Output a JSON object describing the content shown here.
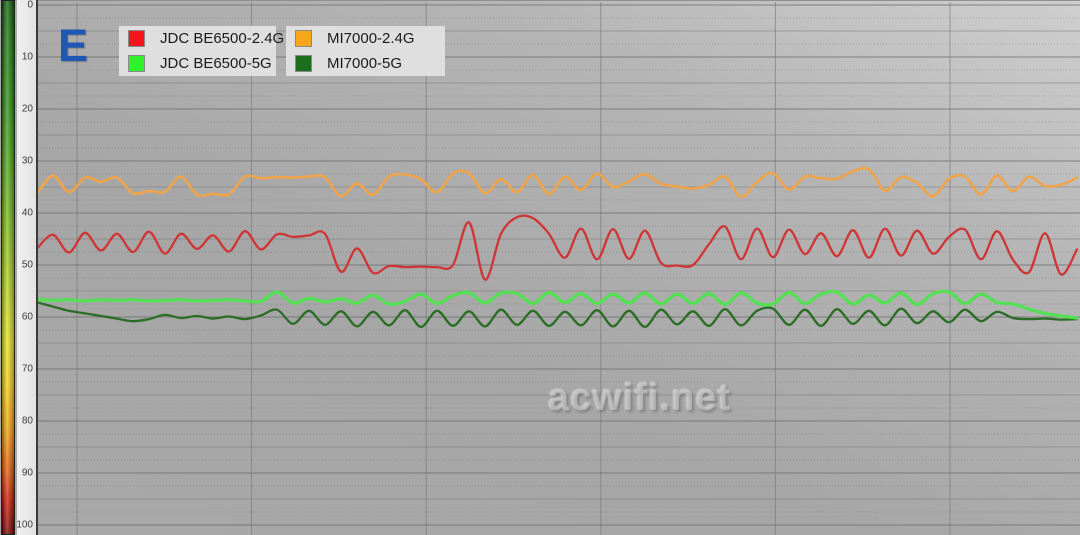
{
  "window": {
    "corner_label": "E",
    "watermark": "acwifi.net"
  },
  "legend": {
    "groups": [
      {
        "items": [
          {
            "label": "JDC BE6500-2.4G",
            "swatch_color": "#f5141e"
          },
          {
            "label": "JDC BE6500-5G",
            "swatch_color": "#2df22d"
          }
        ]
      },
      {
        "items": [
          {
            "label": "MI7000-2.4G",
            "swatch_color": "#f8a61c"
          },
          {
            "label": "MI7000-5G",
            "swatch_color": "#1b6e1b"
          }
        ]
      }
    ]
  },
  "y_axis": {
    "ticks": [
      "0",
      "10",
      "20",
      "30",
      "40",
      "50",
      "60",
      "70",
      "80",
      "90",
      "100"
    ],
    "direction": "top-to-bottom"
  },
  "color_scale_bar": {
    "stops_top_to_bottom": [
      "#135f0c",
      "#2f9214",
      "#8ec41c",
      "#e8e41e",
      "#f5a60e",
      "#cc1806",
      "#7a0402"
    ]
  },
  "chart_data": {
    "type": "line",
    "title": "",
    "xlabel": "",
    "ylabel": "",
    "x_axis_labels_visible": false,
    "ylim": [
      0,
      100
    ],
    "y_inverted_display": "0 at top, 100 at bottom",
    "gridline_step_y": 5,
    "legend_position": "top-left",
    "series": [
      {
        "name": "JDC BE6500-2.4G",
        "color": "#d03535",
        "width": 2.3,
        "points": [
          [
            37,
            46.8
          ],
          [
            53,
            44.2
          ],
          [
            69,
            47.6
          ],
          [
            85,
            43.8
          ],
          [
            101,
            47.2
          ],
          [
            117,
            44.0
          ],
          [
            133,
            47.5
          ],
          [
            149,
            43.6
          ],
          [
            165,
            47.8
          ],
          [
            181,
            44.0
          ],
          [
            197,
            46.9
          ],
          [
            213,
            44.3
          ],
          [
            229,
            47.4
          ],
          [
            245,
            43.5
          ],
          [
            261,
            47.0
          ],
          [
            277,
            44.1
          ],
          [
            293,
            44.6
          ],
          [
            309,
            44.3
          ],
          [
            325,
            44.0
          ],
          [
            341,
            51.3
          ],
          [
            357,
            46.8
          ],
          [
            373,
            51.5
          ],
          [
            389,
            50.2
          ],
          [
            405,
            50.4
          ],
          [
            421,
            50.3
          ],
          [
            437,
            50.4
          ],
          [
            453,
            50.0
          ],
          [
            469,
            41.8
          ],
          [
            485,
            52.8
          ],
          [
            501,
            44.0
          ],
          [
            517,
            40.8
          ],
          [
            533,
            41.0
          ],
          [
            549,
            44.0
          ],
          [
            565,
            48.6
          ],
          [
            581,
            43.0
          ],
          [
            597,
            48.9
          ],
          [
            613,
            43.1
          ],
          [
            629,
            48.8
          ],
          [
            645,
            43.4
          ],
          [
            661,
            49.6
          ],
          [
            677,
            50.1
          ],
          [
            693,
            50.0
          ],
          [
            709,
            46.0
          ],
          [
            725,
            42.6
          ],
          [
            741,
            48.9
          ],
          [
            757,
            43.0
          ],
          [
            773,
            48.5
          ],
          [
            789,
            43.2
          ],
          [
            805,
            47.9
          ],
          [
            821,
            43.9
          ],
          [
            837,
            48.3
          ],
          [
            853,
            43.3
          ],
          [
            869,
            48.6
          ],
          [
            885,
            43.0
          ],
          [
            901,
            48.2
          ],
          [
            917,
            43.4
          ],
          [
            933,
            47.8
          ],
          [
            949,
            44.6
          ],
          [
            965,
            43.2
          ],
          [
            981,
            48.9
          ],
          [
            997,
            43.5
          ],
          [
            1013,
            49.0
          ],
          [
            1029,
            51.4
          ],
          [
            1045,
            43.9
          ],
          [
            1061,
            51.8
          ],
          [
            1077,
            47.0
          ]
        ]
      },
      {
        "name": "MI7000-2.4G",
        "color": "#efa44a",
        "width": 2.6,
        "points": [
          [
            37,
            36.3
          ],
          [
            53,
            32.8
          ],
          [
            69,
            36.0
          ],
          [
            85,
            33.2
          ],
          [
            101,
            34.0
          ],
          [
            117,
            33.2
          ],
          [
            133,
            36.2
          ],
          [
            149,
            35.8
          ],
          [
            165,
            35.9
          ],
          [
            181,
            33.0
          ],
          [
            197,
            36.5
          ],
          [
            213,
            36.3
          ],
          [
            229,
            36.4
          ],
          [
            245,
            33.0
          ],
          [
            261,
            33.3
          ],
          [
            277,
            33.1
          ],
          [
            293,
            33.2
          ],
          [
            309,
            33.0
          ],
          [
            325,
            33.1
          ],
          [
            341,
            36.8
          ],
          [
            357,
            34.3
          ],
          [
            373,
            36.5
          ],
          [
            389,
            33.0
          ],
          [
            405,
            32.6
          ],
          [
            421,
            33.5
          ],
          [
            437,
            36.0
          ],
          [
            453,
            32.4
          ],
          [
            469,
            32.3
          ],
          [
            485,
            36.2
          ],
          [
            501,
            33.5
          ],
          [
            517,
            36.0
          ],
          [
            533,
            32.7
          ],
          [
            549,
            36.4
          ],
          [
            565,
            33.0
          ],
          [
            581,
            35.6
          ],
          [
            597,
            32.4
          ],
          [
            613,
            35.0
          ],
          [
            629,
            33.9
          ],
          [
            645,
            32.5
          ],
          [
            661,
            34.4
          ],
          [
            677,
            34.9
          ],
          [
            693,
            35.3
          ],
          [
            709,
            34.6
          ],
          [
            725,
            33.0
          ],
          [
            741,
            36.9
          ],
          [
            757,
            34.0
          ],
          [
            773,
            32.3
          ],
          [
            789,
            35.5
          ],
          [
            805,
            33.0
          ],
          [
            821,
            33.3
          ],
          [
            837,
            33.4
          ],
          [
            853,
            32.0
          ],
          [
            869,
            31.6
          ],
          [
            885,
            35.7
          ],
          [
            901,
            33.1
          ],
          [
            917,
            34.2
          ],
          [
            933,
            36.8
          ],
          [
            949,
            33.4
          ],
          [
            965,
            33.0
          ],
          [
            981,
            36.5
          ],
          [
            997,
            32.8
          ],
          [
            1013,
            35.8
          ],
          [
            1029,
            33.0
          ],
          [
            1045,
            34.8
          ],
          [
            1061,
            34.6
          ],
          [
            1077,
            33.2
          ]
        ]
      },
      {
        "name": "MI7000-5G",
        "color": "#2b6d26",
        "width": 2.3,
        "points": [
          [
            37,
            57.2
          ],
          [
            53,
            58.0
          ],
          [
            69,
            58.8
          ],
          [
            85,
            59.3
          ],
          [
            101,
            59.8
          ],
          [
            117,
            60.3
          ],
          [
            133,
            60.8
          ],
          [
            149,
            60.4
          ],
          [
            165,
            59.6
          ],
          [
            181,
            60.2
          ],
          [
            197,
            59.8
          ],
          [
            213,
            60.3
          ],
          [
            229,
            59.9
          ],
          [
            245,
            60.4
          ],
          [
            261,
            59.7
          ],
          [
            277,
            58.6
          ],
          [
            293,
            61.3
          ],
          [
            309,
            58.8
          ],
          [
            325,
            61.5
          ],
          [
            341,
            58.9
          ],
          [
            357,
            61.8
          ],
          [
            373,
            59.0
          ],
          [
            389,
            61.6
          ],
          [
            405,
            58.7
          ],
          [
            421,
            61.9
          ],
          [
            437,
            58.8
          ],
          [
            453,
            61.7
          ],
          [
            469,
            58.9
          ],
          [
            485,
            61.8
          ],
          [
            501,
            58.6
          ],
          [
            517,
            61.5
          ],
          [
            533,
            58.8
          ],
          [
            549,
            61.7
          ],
          [
            565,
            59.0
          ],
          [
            581,
            61.6
          ],
          [
            597,
            58.7
          ],
          [
            613,
            61.8
          ],
          [
            629,
            58.8
          ],
          [
            645,
            61.9
          ],
          [
            661,
            58.6
          ],
          [
            677,
            61.4
          ],
          [
            693,
            58.9
          ],
          [
            709,
            61.7
          ],
          [
            725,
            58.5
          ],
          [
            741,
            61.6
          ],
          [
            757,
            58.8
          ],
          [
            773,
            58.4
          ],
          [
            789,
            61.5
          ],
          [
            805,
            58.6
          ],
          [
            821,
            61.7
          ],
          [
            837,
            58.5
          ],
          [
            853,
            61.3
          ],
          [
            869,
            58.8
          ],
          [
            885,
            61.6
          ],
          [
            901,
            58.4
          ],
          [
            917,
            61.2
          ],
          [
            933,
            58.9
          ],
          [
            949,
            61.0
          ],
          [
            965,
            58.6
          ],
          [
            981,
            60.8
          ],
          [
            997,
            59.0
          ],
          [
            1013,
            60.2
          ],
          [
            1029,
            60.4
          ],
          [
            1045,
            60.3
          ],
          [
            1061,
            60.5
          ],
          [
            1077,
            60.4
          ]
        ]
      },
      {
        "name": "JDC BE6500-5G",
        "color": "#55df55",
        "width": 3.4,
        "points": [
          [
            37,
            56.6
          ],
          [
            53,
            56.8
          ],
          [
            69,
            56.7
          ],
          [
            85,
            56.9
          ],
          [
            101,
            56.7
          ],
          [
            117,
            56.8
          ],
          [
            133,
            56.7
          ],
          [
            149,
            56.9
          ],
          [
            165,
            56.8
          ],
          [
            181,
            56.7
          ],
          [
            197,
            56.9
          ],
          [
            213,
            56.8
          ],
          [
            229,
            56.7
          ],
          [
            245,
            56.9
          ],
          [
            261,
            57.0
          ],
          [
            277,
            55.2
          ],
          [
            293,
            57.3
          ],
          [
            309,
            56.4
          ],
          [
            325,
            57.1
          ],
          [
            341,
            56.5
          ],
          [
            357,
            57.3
          ],
          [
            373,
            55.8
          ],
          [
            389,
            57.5
          ],
          [
            405,
            57.0
          ],
          [
            421,
            55.6
          ],
          [
            437,
            57.4
          ],
          [
            453,
            55.9
          ],
          [
            469,
            55.3
          ],
          [
            485,
            57.3
          ],
          [
            501,
            55.4
          ],
          [
            517,
            55.5
          ],
          [
            533,
            57.4
          ],
          [
            549,
            55.3
          ],
          [
            565,
            57.2
          ],
          [
            581,
            55.5
          ],
          [
            597,
            57.4
          ],
          [
            613,
            55.6
          ],
          [
            629,
            57.3
          ],
          [
            645,
            55.4
          ],
          [
            661,
            57.5
          ],
          [
            677,
            55.6
          ],
          [
            693,
            57.4
          ],
          [
            709,
            55.5
          ],
          [
            725,
            57.6
          ],
          [
            741,
            55.4
          ],
          [
            757,
            57.3
          ],
          [
            773,
            57.5
          ],
          [
            789,
            55.3
          ],
          [
            805,
            57.4
          ],
          [
            821,
            55.6
          ],
          [
            837,
            55.2
          ],
          [
            853,
            57.5
          ],
          [
            869,
            55.8
          ],
          [
            885,
            57.3
          ],
          [
            901,
            55.4
          ],
          [
            917,
            57.6
          ],
          [
            933,
            55.5
          ],
          [
            949,
            55.2
          ],
          [
            965,
            57.4
          ],
          [
            981,
            55.6
          ],
          [
            997,
            57.2
          ],
          [
            1013,
            57.5
          ],
          [
            1029,
            58.5
          ],
          [
            1045,
            59.3
          ],
          [
            1061,
            59.8
          ],
          [
            1077,
            60.2
          ]
        ]
      }
    ]
  }
}
